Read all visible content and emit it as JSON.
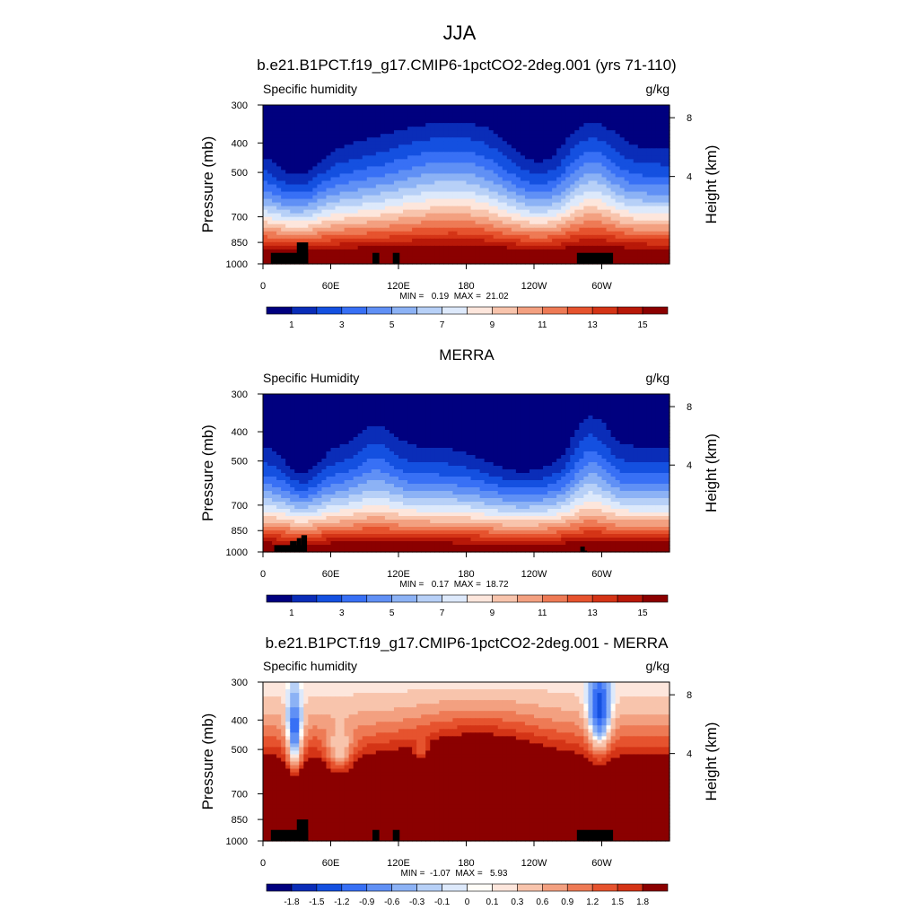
{
  "figure_title": "JJA",
  "chart_data": [
    {
      "type": "heatmap",
      "title": "b.e21.B1PCT.f19_g17.CMIP6-1pctCO2-2deg.001 (yrs 71-110)",
      "left_label": "Specific humidity",
      "right_label": "g/kg",
      "ylabel": "Pressure (mb)",
      "y2label": "Height (km)",
      "y_ticks": [
        "300",
        "400",
        "500",
        "700",
        "850",
        "1000"
      ],
      "y2_ticks": [
        "8",
        "4"
      ],
      "x_ticks": [
        "0",
        "60E",
        "120E",
        "180",
        "120W",
        "60W"
      ],
      "stats": "MIN =   0.19  MAX =  21.02",
      "colorbar_labels": [
        "1",
        "3",
        "5",
        "7",
        "9",
        "11",
        "13",
        "15"
      ],
      "field": "model",
      "xlim": [
        0,
        360
      ],
      "ylim": [
        1000,
        300
      ]
    },
    {
      "type": "heatmap",
      "title": "MERRA",
      "left_label": "Specific Humidity",
      "right_label": "g/kg",
      "ylabel": "Pressure (mb)",
      "y2label": "Height (km)",
      "y_ticks": [
        "300",
        "400",
        "500",
        "700",
        "850",
        "1000"
      ],
      "y2_ticks": [
        "8",
        "4"
      ],
      "x_ticks": [
        "0",
        "60E",
        "120E",
        "180",
        "120W",
        "60W"
      ],
      "stats": "MIN =   0.17  MAX =  18.72",
      "colorbar_labels": [
        "1",
        "3",
        "5",
        "7",
        "9",
        "11",
        "13",
        "15"
      ],
      "field": "obs",
      "xlim": [
        0,
        360
      ],
      "ylim": [
        1000,
        300
      ]
    },
    {
      "type": "heatmap",
      "title": "b.e21.B1PCT.f19_g17.CMIP6-1pctCO2-2deg.001 - MERRA",
      "left_label": "Specific humidity",
      "right_label": "g/kg",
      "ylabel": "Pressure (mb)",
      "y2label": "Height (km)",
      "y_ticks": [
        "300",
        "400",
        "500",
        "700",
        "850",
        "1000"
      ],
      "y2_ticks": [
        "8",
        "4"
      ],
      "x_ticks": [
        "0",
        "60E",
        "120E",
        "180",
        "120W",
        "60W"
      ],
      "stats": "MIN =  -1.07  MAX =   5.93",
      "colorbar_labels": [
        "-1.8",
        "-1.5",
        "-1.2",
        "-0.9",
        "-0.6",
        "-0.3",
        "-0.1",
        "0",
        "0.1",
        "0.3",
        "0.6",
        "0.9",
        "1.2",
        "1.5",
        "1.8"
      ],
      "field": "diff",
      "xlim": [
        0,
        360
      ],
      "ylim": [
        1000,
        300
      ]
    }
  ],
  "colors": {
    "abs_scale": [
      "#00007f",
      "#0a2db8",
      "#1450e0",
      "#3870f5",
      "#6090f5",
      "#8cb2f5",
      "#b7d0f7",
      "#dde9fb",
      "#fde6dc",
      "#f8c4ac",
      "#f3a080",
      "#ee7a55",
      "#e6532e",
      "#d43416",
      "#b81808",
      "#8b0000"
    ],
    "diff_scale": [
      "#00007f",
      "#0a2db8",
      "#1450e0",
      "#3870f5",
      "#6090f5",
      "#8cb2f5",
      "#b7d0f7",
      "#dde9fb",
      "#fffdf8",
      "#fde6dc",
      "#f8c4ac",
      "#f3a080",
      "#ee7a55",
      "#e6532e",
      "#d43416",
      "#8b0000"
    ],
    "topography": "#000000"
  }
}
